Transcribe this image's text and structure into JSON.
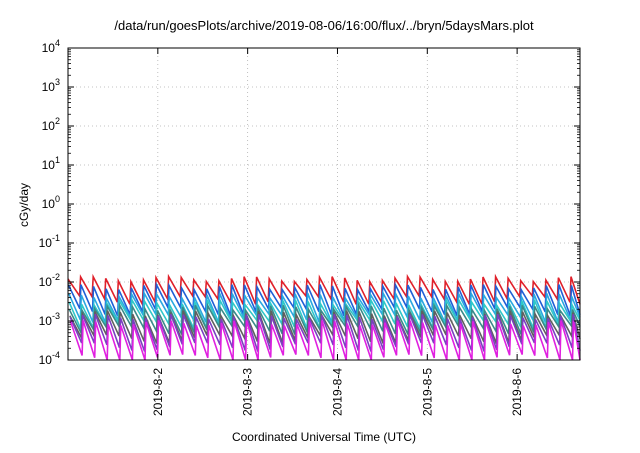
{
  "chart_data": {
    "type": "line",
    "title": "/data/run/goesPlots/archive/2019-08-06/16:00/flux/../bryn/5daysMars.plot",
    "xlabel": "Coordinated Universal Time (UTC)",
    "ylabel": "cGy/day",
    "y_scale": "log",
    "ylim": [
      0.0001,
      10000
    ],
    "xlim": [
      0,
      5.7
    ],
    "grid": true,
    "legend": "none",
    "y_ticks": [
      {
        "value": 0.0001,
        "base": "10",
        "exp": "-4"
      },
      {
        "value": 0.001,
        "base": "10",
        "exp": "-3"
      },
      {
        "value": 0.01,
        "base": "10",
        "exp": "-2"
      },
      {
        "value": 0.1,
        "base": "10",
        "exp": "-1"
      },
      {
        "value": 1,
        "base": "10",
        "exp": "0"
      },
      {
        "value": 10,
        "base": "10",
        "exp": "1"
      },
      {
        "value": 100,
        "base": "10",
        "exp": "2"
      },
      {
        "value": 1000,
        "base": "10",
        "exp": "3"
      },
      {
        "value": 10000,
        "base": "10",
        "exp": "4"
      }
    ],
    "x_ticks": [
      {
        "value": 1,
        "label": "2019-8-2"
      },
      {
        "value": 2,
        "label": "2019-8-3"
      },
      {
        "value": 3,
        "label": "2019-8-4"
      },
      {
        "value": 4,
        "label": "2019-8-5"
      },
      {
        "value": 5,
        "label": "2019-8-6"
      }
    ],
    "sawtooth_period_days": 0.14,
    "series": [
      {
        "color": "#e0202a",
        "peak": 0.012,
        "trough": 0.0035
      },
      {
        "color": "#1f5fd6",
        "peak": 0.0075,
        "trough": 0.0018
      },
      {
        "color": "#2aa8e0",
        "peak": 0.0045,
        "trough": 0.0012
      },
      {
        "color": "#30c8c8",
        "peak": 0.003,
        "trough": 0.00085
      },
      {
        "color": "#3a8a8a",
        "peak": 0.0022,
        "trough": 0.0006
      },
      {
        "color": "#606060",
        "peak": 0.0016,
        "trough": 0.00035
      },
      {
        "color": "#7a40c0",
        "peak": 0.0013,
        "trough": 0.00022
      },
      {
        "color": "#e020e0",
        "peak": 0.0009,
        "trough": 0.00011
      }
    ]
  }
}
